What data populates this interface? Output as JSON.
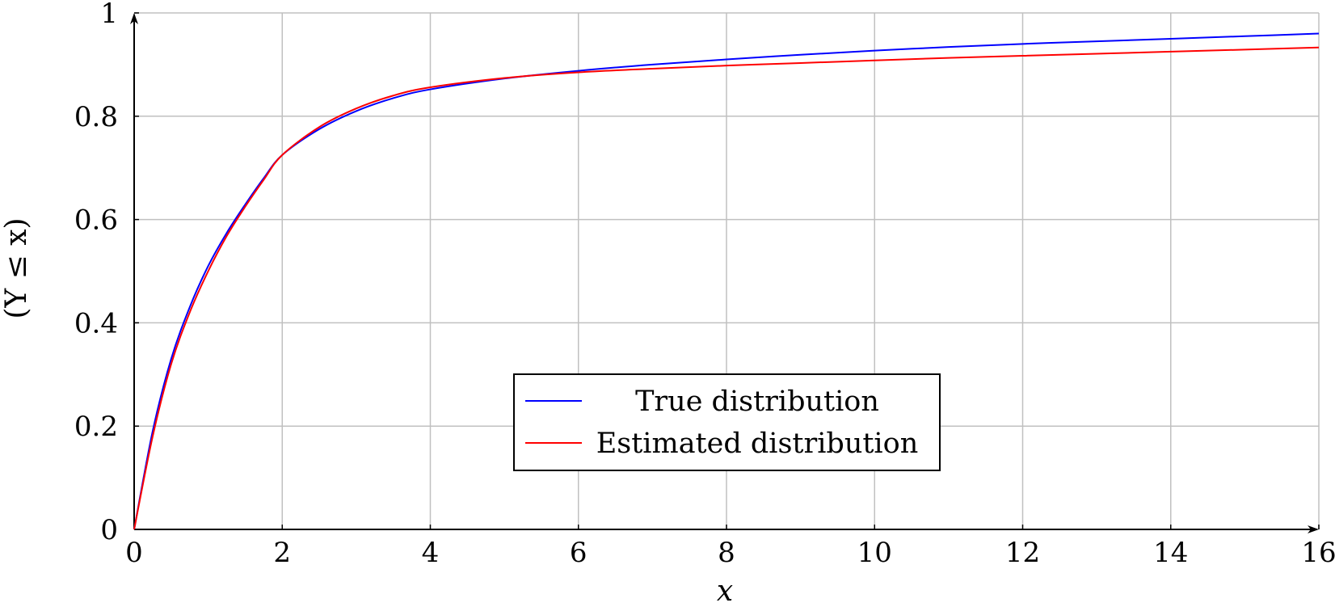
{
  "chart_data": {
    "type": "line",
    "title": "",
    "xlabel": "x",
    "ylabel": "(Y ≤ x)",
    "xlim": [
      0,
      16
    ],
    "ylim": [
      0,
      1
    ],
    "xticks": [
      0,
      2,
      4,
      6,
      8,
      10,
      12,
      14,
      16
    ],
    "yticks": [
      0,
      0.2,
      0.4,
      0.6,
      0.8,
      1
    ],
    "xtick_labels": [
      "0",
      "2",
      "4",
      "6",
      "8",
      "10",
      "12",
      "14",
      "16"
    ],
    "ytick_labels": [
      "0",
      "0.2",
      "0.4",
      "0.6",
      "0.8",
      "1"
    ],
    "grid": true,
    "legend_position": "bottom-center",
    "x": [
      0,
      0.25,
      0.5,
      0.75,
      1,
      1.25,
      1.5,
      1.75,
      2,
      2.5,
      3,
      3.5,
      4,
      5,
      6,
      7,
      8,
      9,
      10,
      11,
      12,
      13,
      14,
      15,
      16
    ],
    "series": [
      {
        "name": "True distribution",
        "color": "#0000ff",
        "values": [
          0,
          0.19,
          0.33,
          0.43,
          0.51,
          0.574,
          0.629,
          0.68,
          0.725,
          0.775,
          0.81,
          0.835,
          0.852,
          0.873,
          0.888,
          0.9,
          0.91,
          0.919,
          0.927,
          0.934,
          0.94,
          0.945,
          0.95,
          0.955,
          0.96
        ]
      },
      {
        "name": "Estimated distribution",
        "color": "#ff0000",
        "values": [
          0,
          0.18,
          0.32,
          0.42,
          0.5,
          0.568,
          0.625,
          0.677,
          0.725,
          0.779,
          0.815,
          0.84,
          0.856,
          0.874,
          0.885,
          0.892,
          0.898,
          0.903,
          0.908,
          0.913,
          0.917,
          0.921,
          0.925,
          0.929,
          0.933
        ]
      }
    ]
  }
}
